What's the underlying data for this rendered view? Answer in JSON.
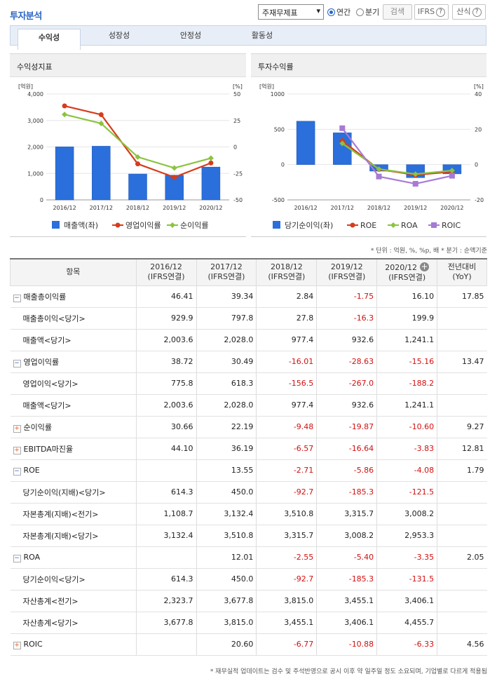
{
  "header": {
    "title": "투자분석",
    "select_value": "주재무제표",
    "radio_annual": "연간",
    "radio_quarter": "분기",
    "search_btn": "검색",
    "ifrs_btn": "IFRS",
    "formula_btn": "산식",
    "help_glyph": "?",
    "select_arrow": "▾"
  },
  "tabs": [
    "수익성",
    "성장성",
    "안정성",
    "활동성"
  ],
  "active_tab": 0,
  "charts": [
    {
      "panel_title": "수익성지표",
      "chart_data": {
        "type": "bar",
        "categories": [
          "2016/12",
          "2017/12",
          "2018/12",
          "2019/12",
          "2020/12"
        ],
        "left_unit": "[억원]",
        "right_unit": "[%]",
        "left_ticks": [
          "4,000",
          "3,000",
          "2,000",
          "1,000",
          "0"
        ],
        "right_ticks": [
          "50",
          "25",
          "0",
          "-25",
          "-50"
        ],
        "ylim_left": [
          0,
          4000
        ],
        "ylim_right": [
          -50,
          50
        ],
        "bars": {
          "name": "매출액(좌)",
          "color": "#2a6fdb",
          "values": [
            2003.6,
            2028.0,
            977.4,
            932.6,
            1241.1
          ]
        },
        "lines": [
          {
            "name": "영업이익률",
            "color": "#d63c1c",
            "values": [
              38.72,
              30.49,
              -16.01,
              -28.63,
              -15.16
            ]
          },
          {
            "name": "순이익률",
            "color": "#8ac43f",
            "values": [
              30.66,
              22.19,
              -9.48,
              -19.87,
              -10.6
            ]
          }
        ]
      }
    },
    {
      "panel_title": "투자수익률",
      "chart_data": {
        "type": "bar",
        "categories": [
          "2016/12",
          "2017/12",
          "2018/12",
          "2019/12",
          "2020/12"
        ],
        "left_unit": "[억원]",
        "right_unit": "[%]",
        "left_ticks": [
          "1000",
          "500",
          "0",
          "-500"
        ],
        "right_ticks": [
          "40",
          "20",
          "0",
          "-20"
        ],
        "ylim_left": [
          -500,
          1000
        ],
        "ylim_right": [
          -20,
          40
        ],
        "bars": {
          "name": "당기순이익(좌)",
          "color": "#2a6fdb",
          "values": [
            614.3,
            450.0,
            -92.7,
            -185.3,
            -131.5
          ]
        },
        "lines": [
          {
            "name": "ROE",
            "color": "#d63c1c",
            "values": [
              null,
              13.55,
              -2.71,
              -5.86,
              -4.08
            ]
          },
          {
            "name": "ROA",
            "color": "#8ac43f",
            "values": [
              null,
              12.01,
              -2.55,
              -5.4,
              -3.35
            ]
          },
          {
            "name": "ROIC",
            "color": "#a77ad6",
            "values": [
              null,
              20.6,
              -6.77,
              -10.88,
              -6.33
            ]
          }
        ]
      }
    }
  ],
  "unit_note": "* 단위 : 억원, %, %p, 배   * 분기 : 순액기준",
  "table": {
    "headers": [
      "항목",
      "2016/12\n(IFRS연결)",
      "2017/12\n(IFRS연결)",
      "2018/12\n(IFRS연결)",
      "2019/12\n(IFRS연결)",
      "2020/12\n(IFRS연결)",
      "전년대비\n(YoY)"
    ],
    "rows": [
      {
        "label": "매출총이익률",
        "toggle": "minus",
        "sub": false,
        "cells": [
          "46.41",
          "39.34",
          "2.84",
          "-1.75",
          "16.10",
          "17.85"
        ]
      },
      {
        "label": "매출총이익<당기>",
        "toggle": "",
        "sub": true,
        "cells": [
          "929.9",
          "797.8",
          "27.8",
          "-16.3",
          "199.9",
          ""
        ]
      },
      {
        "label": "매출액<당기>",
        "toggle": "",
        "sub": true,
        "cells": [
          "2,003.6",
          "2,028.0",
          "977.4",
          "932.6",
          "1,241.1",
          ""
        ]
      },
      {
        "label": "영업이익률",
        "toggle": "minus",
        "sub": false,
        "cells": [
          "38.72",
          "30.49",
          "-16.01",
          "-28.63",
          "-15.16",
          "13.47"
        ]
      },
      {
        "label": "영업이익<당기>",
        "toggle": "",
        "sub": true,
        "cells": [
          "775.8",
          "618.3",
          "-156.5",
          "-267.0",
          "-188.2",
          ""
        ]
      },
      {
        "label": "매출액<당기>",
        "toggle": "",
        "sub": true,
        "cells": [
          "2,003.6",
          "2,028.0",
          "977.4",
          "932.6",
          "1,241.1",
          ""
        ]
      },
      {
        "label": "순이익률",
        "toggle": "plus",
        "sub": false,
        "cells": [
          "30.66",
          "22.19",
          "-9.48",
          "-19.87",
          "-10.60",
          "9.27"
        ]
      },
      {
        "label": "EBITDA마진율",
        "toggle": "plus",
        "sub": false,
        "cells": [
          "44.10",
          "36.19",
          "-6.57",
          "-16.64",
          "-3.83",
          "12.81"
        ]
      },
      {
        "label": "ROE",
        "toggle": "minus",
        "sub": false,
        "cells": [
          "",
          "13.55",
          "-2.71",
          "-5.86",
          "-4.08",
          "1.79"
        ]
      },
      {
        "label": "당기순이익(지배)<당기>",
        "toggle": "",
        "sub": true,
        "cells": [
          "614.3",
          "450.0",
          "-92.7",
          "-185.3",
          "-121.5",
          ""
        ]
      },
      {
        "label": "자본총계(지배)<전기>",
        "toggle": "",
        "sub": true,
        "cells": [
          "1,108.7",
          "3,132.4",
          "3,510.8",
          "3,315.7",
          "3,008.2",
          ""
        ]
      },
      {
        "label": "자본총계(지배)<당기>",
        "toggle": "",
        "sub": true,
        "cells": [
          "3,132.4",
          "3,510.8",
          "3,315.7",
          "3,008.2",
          "2,953.3",
          ""
        ]
      },
      {
        "label": "ROA",
        "toggle": "minus",
        "sub": false,
        "cells": [
          "",
          "12.01",
          "-2.55",
          "-5.40",
          "-3.35",
          "2.05"
        ]
      },
      {
        "label": "당기순이익<당기>",
        "toggle": "",
        "sub": true,
        "cells": [
          "614.3",
          "450.0",
          "-92.7",
          "-185.3",
          "-131.5",
          ""
        ]
      },
      {
        "label": "자산총계<전기>",
        "toggle": "",
        "sub": true,
        "cells": [
          "2,323.7",
          "3,677.8",
          "3,815.0",
          "3,455.1",
          "3,406.1",
          ""
        ]
      },
      {
        "label": "자산총계<당기>",
        "toggle": "",
        "sub": true,
        "cells": [
          "3,677.8",
          "3,815.0",
          "3,455.1",
          "3,406.1",
          "4,455.7",
          ""
        ]
      },
      {
        "label": "ROIC",
        "toggle": "plus",
        "sub": false,
        "cells": [
          "",
          "20.60",
          "-6.77",
          "-10.88",
          "-6.33",
          "4.56"
        ]
      }
    ]
  },
  "bottom_note": "* 재무실적 업데이트는 검수 및 주석반영으로 공시 이후 약 일주일 정도 소요되며, 기업별로 다르게 적용됨",
  "colors": {
    "accent": "#2a64c5",
    "negative": "#d21010"
  }
}
